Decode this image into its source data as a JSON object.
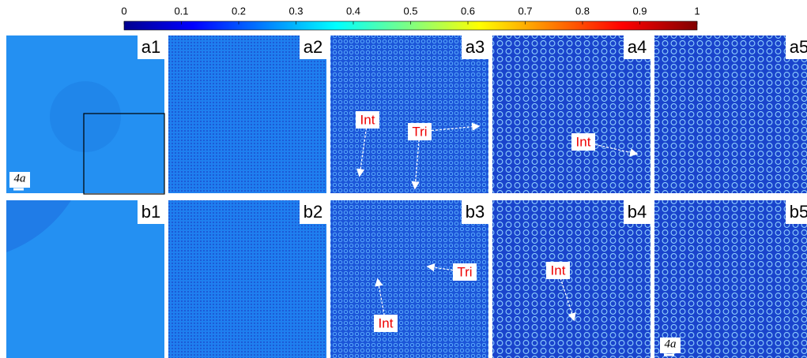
{
  "colorbar": {
    "ticks": [
      0,
      0.1,
      0.2,
      0.3,
      0.4,
      0.5,
      0.6,
      0.7,
      0.8,
      0.9,
      1
    ],
    "range": [
      0,
      1
    ]
  },
  "panels": [
    {
      "label": "a1",
      "scale_label": "4a"
    },
    {
      "label": "a2"
    },
    {
      "label": "a3",
      "annotations": [
        "Int",
        "Tri"
      ]
    },
    {
      "label": "a4",
      "annotations": [
        "Int"
      ]
    },
    {
      "label": "a5"
    },
    {
      "label": "b1"
    },
    {
      "label": "b2"
    },
    {
      "label": "b3",
      "annotations": [
        "Tri",
        "Int"
      ]
    },
    {
      "label": "b4",
      "annotations": [
        "Int"
      ]
    },
    {
      "label": "b5",
      "scale_label": "4a"
    }
  ]
}
